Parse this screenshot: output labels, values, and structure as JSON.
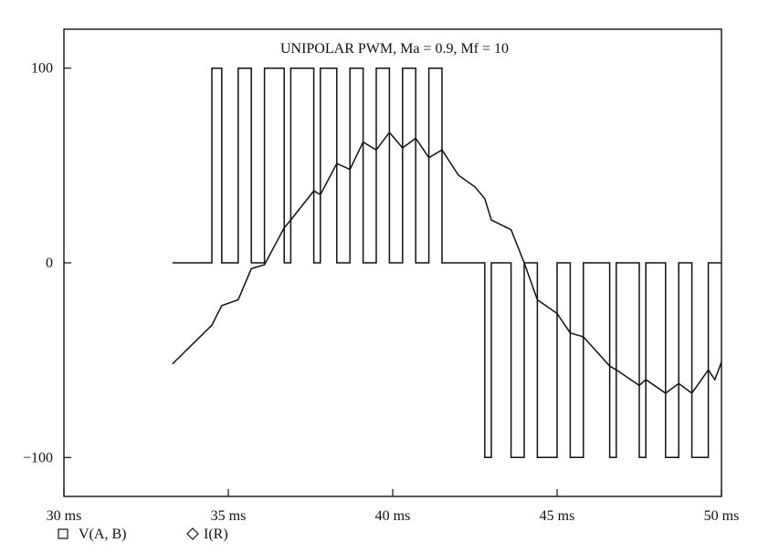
{
  "chart_data": {
    "type": "line",
    "title": "UNIPOLAR PWM, Ma = 0.9, Mf = 10",
    "x_unit": "ms",
    "xlim": [
      30,
      50
    ],
    "ylim": [
      -120,
      120
    ],
    "x_ticks": [
      {
        "value": 30,
        "label": "30 ms"
      },
      {
        "value": 35,
        "label": "35 ms"
      },
      {
        "value": 40,
        "label": "40 ms"
      },
      {
        "value": 45,
        "label": "45 ms"
      },
      {
        "value": 50,
        "label": "50 ms"
      }
    ],
    "y_ticks": [
      {
        "value": 100,
        "label": "100"
      },
      {
        "value": 0,
        "label": "0"
      },
      {
        "value": -100,
        "label": "−100"
      }
    ],
    "grid": false,
    "legend_position": "bottom-left",
    "series": [
      {
        "name": "V(A, B)",
        "marker": "square",
        "color": "#111111",
        "x": [
          33.3,
          34.5,
          34.5,
          34.8,
          34.8,
          35.3,
          35.3,
          35.7,
          35.7,
          36.1,
          36.1,
          36.7,
          36.7,
          36.9,
          36.9,
          37.6,
          37.6,
          37.8,
          37.8,
          38.3,
          38.3,
          38.7,
          38.7,
          39.1,
          39.1,
          39.5,
          39.5,
          39.9,
          39.9,
          40.3,
          40.3,
          40.7,
          40.7,
          41.1,
          41.1,
          41.5,
          41.5,
          42.8,
          42.8,
          43.0,
          43.0,
          43.6,
          43.6,
          44.0,
          44.0,
          44.4,
          44.4,
          45.0,
          45.0,
          45.4,
          45.4,
          45.8,
          45.8,
          46.6,
          46.6,
          46.8,
          46.8,
          47.5,
          47.5,
          47.7,
          47.7,
          48.3,
          48.3,
          48.7,
          48.7,
          49.1,
          49.1,
          49.6,
          49.6,
          50.0
        ],
        "y": [
          0,
          0,
          100,
          100,
          0,
          0,
          100,
          100,
          0,
          0,
          100,
          100,
          0,
          0,
          100,
          100,
          0,
          0,
          100,
          100,
          0,
          0,
          100,
          100,
          0,
          0,
          100,
          100,
          0,
          0,
          100,
          100,
          0,
          0,
          100,
          100,
          0,
          0,
          -100,
          -100,
          0,
          0,
          -100,
          -100,
          0,
          0,
          -100,
          -100,
          0,
          0,
          -100,
          -100,
          0,
          0,
          -100,
          -100,
          0,
          0,
          -100,
          -100,
          0,
          0,
          -100,
          -100,
          0,
          0,
          -100,
          -100,
          0,
          0
        ]
      },
      {
        "name": "I(R)",
        "marker": "diamond",
        "color": "#111111",
        "x": [
          33.3,
          34.5,
          34.8,
          35.3,
          35.7,
          36.1,
          36.7,
          36.9,
          37.6,
          37.8,
          38.3,
          38.7,
          39.1,
          39.5,
          39.9,
          40.3,
          40.7,
          41.1,
          41.5,
          42.0,
          42.5,
          42.8,
          43.0,
          43.6,
          44.0,
          44.4,
          45.0,
          45.4,
          45.8,
          46.6,
          46.8,
          47.5,
          47.7,
          48.3,
          48.7,
          49.1,
          49.6,
          49.8,
          50.0
        ],
        "y": [
          -52,
          -32,
          -22,
          -19,
          -3,
          -1,
          18,
          22,
          37,
          35,
          51,
          48,
          62,
          58,
          67,
          59,
          64,
          54,
          58,
          45,
          39,
          33,
          22,
          17,
          0,
          -19,
          -26,
          -36,
          -38,
          -53,
          -55,
          -63,
          -60,
          -67,
          -62,
          -67,
          -55,
          -60,
          -51
        ]
      }
    ]
  }
}
